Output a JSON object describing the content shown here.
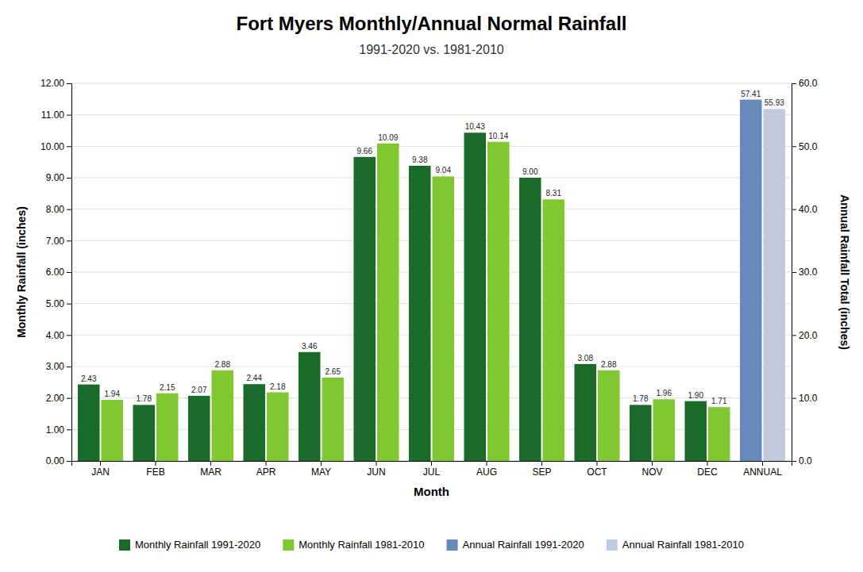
{
  "chart_data": {
    "type": "bar",
    "title": "Fort Myers Monthly/Annual Normal Rainfall",
    "subtitle": "1991-2020 vs. 1981-2010",
    "xlabel": "Month",
    "ylabel": "Monthly Rainfall (inches)",
    "y2label": "Annual Rainfall Total (inches)",
    "categories": [
      "JAN",
      "FEB",
      "MAR",
      "APR",
      "MAY",
      "JUN",
      "JUL",
      "AUG",
      "SEP",
      "OCT",
      "NOV",
      "DEC",
      "ANNUAL"
    ],
    "series": [
      {
        "name": "Monthly Rainfall 1991-2020",
        "color": "#1a6b2a",
        "values": [
          2.43,
          1.78,
          2.07,
          2.44,
          3.46,
          9.66,
          9.38,
          10.43,
          9.0,
          3.08,
          1.78,
          1.9,
          null
        ],
        "value_labels": [
          "2.43",
          "1.78",
          "2.07",
          "2.44",
          "3.46",
          "9.66",
          "9.38",
          "10.43",
          "9.00",
          "3.08",
          "1.78",
          "1.90",
          null
        ]
      },
      {
        "name": "Monthly Rainfall 1981-2010",
        "color": "#80c832",
        "values": [
          1.94,
          2.15,
          2.88,
          2.18,
          2.65,
          10.09,
          9.04,
          10.14,
          8.31,
          2.88,
          1.96,
          1.71,
          null
        ],
        "value_labels": [
          "1.94",
          "2.15",
          "2.88",
          "2.18",
          "2.65",
          "10.09",
          "9.04",
          "10.14",
          "8.31",
          "2.88",
          "1.96",
          "1.71",
          null
        ]
      },
      {
        "name": "Annual Rainfall 1991-2020",
        "color": "#6688bb",
        "axis": "y2",
        "values": [
          null,
          null,
          null,
          null,
          null,
          null,
          null,
          null,
          null,
          null,
          null,
          null,
          57.41
        ],
        "value_labels": [
          null,
          null,
          null,
          null,
          null,
          null,
          null,
          null,
          null,
          null,
          null,
          null,
          "57.41"
        ]
      },
      {
        "name": "Annual Rainfall 1981-2010",
        "color": "#c0ccdd",
        "axis": "y2",
        "values": [
          null,
          null,
          null,
          null,
          null,
          null,
          null,
          null,
          null,
          null,
          null,
          null,
          55.93
        ],
        "value_labels": [
          null,
          null,
          null,
          null,
          null,
          null,
          null,
          null,
          null,
          null,
          null,
          null,
          "55.93"
        ]
      }
    ],
    "ylim": [
      0,
      12
    ],
    "yticks": [
      {
        "value": 0,
        "label": "0.00"
      },
      {
        "value": 1,
        "label": "1.00"
      },
      {
        "value": 2,
        "label": "2.00"
      },
      {
        "value": 3,
        "label": "3.00"
      },
      {
        "value": 4,
        "label": "4.00"
      },
      {
        "value": 5,
        "label": "5.00"
      },
      {
        "value": 6,
        "label": "6.00"
      },
      {
        "value": 7,
        "label": "7.00"
      },
      {
        "value": 8,
        "label": "8.00"
      },
      {
        "value": 9,
        "label": "9.00"
      },
      {
        "value": 10,
        "label": "10.00"
      },
      {
        "value": 11,
        "label": "11.00"
      },
      {
        "value": 12,
        "label": "12.00"
      }
    ],
    "y2lim": [
      0,
      60
    ],
    "y2ticks": [
      {
        "value": 0,
        "label": "0.0"
      },
      {
        "value": 10,
        "label": "10.0"
      },
      {
        "value": 20,
        "label": "20.0"
      },
      {
        "value": 30,
        "label": "30.0"
      },
      {
        "value": 40,
        "label": "40.0"
      },
      {
        "value": 50,
        "label": "50.0"
      },
      {
        "value": 60,
        "label": "60.0"
      }
    ],
    "grid": true,
    "data_labels": true,
    "legend": "bottom"
  }
}
